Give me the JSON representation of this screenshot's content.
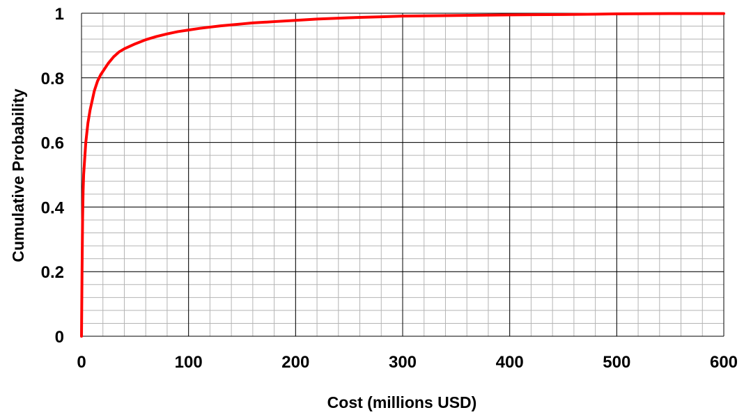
{
  "chart_data": {
    "type": "line",
    "title": "",
    "xlabel": "Cost (millions USD)",
    "ylabel": "Cumulative Probability",
    "xlim": [
      0,
      600
    ],
    "ylim": [
      0,
      1
    ],
    "x_ticks": [
      "0",
      "100",
      "200",
      "300",
      "400",
      "500",
      "600"
    ],
    "y_ticks": [
      "0",
      "0.2",
      "0.4",
      "0.6",
      "0.8",
      "1"
    ],
    "x_tick_values": [
      0,
      100,
      200,
      300,
      400,
      500,
      600
    ],
    "y_tick_values": [
      0,
      0.2,
      0.4,
      0.6,
      0.8,
      1
    ],
    "grid": {
      "major": true,
      "minor": true,
      "minor_x_step": 20,
      "minor_y_step": 0.04
    },
    "legend": "none",
    "series": [
      {
        "color": "#ff0000",
        "x": [
          0,
          0.5,
          1,
          1.5,
          2,
          3,
          4,
          5,
          6,
          8,
          10,
          12,
          15,
          18,
          20,
          25,
          30,
          35,
          40,
          50,
          60,
          70,
          80,
          90,
          100,
          110,
          120,
          130,
          140,
          150,
          160,
          180,
          200,
          220,
          250,
          280,
          300,
          350,
          400,
          450,
          480,
          500,
          550,
          600
        ],
        "y": [
          0,
          0.2,
          0.36,
          0.45,
          0.5,
          0.55,
          0.6,
          0.63,
          0.66,
          0.7,
          0.73,
          0.76,
          0.79,
          0.81,
          0.82,
          0.845,
          0.865,
          0.88,
          0.89,
          0.905,
          0.918,
          0.928,
          0.936,
          0.943,
          0.948,
          0.953,
          0.957,
          0.961,
          0.964,
          0.967,
          0.97,
          0.974,
          0.978,
          0.982,
          0.986,
          0.989,
          0.991,
          0.993,
          0.995,
          0.996,
          0.997,
          0.998,
          0.999,
          0.999
        ]
      }
    ]
  }
}
